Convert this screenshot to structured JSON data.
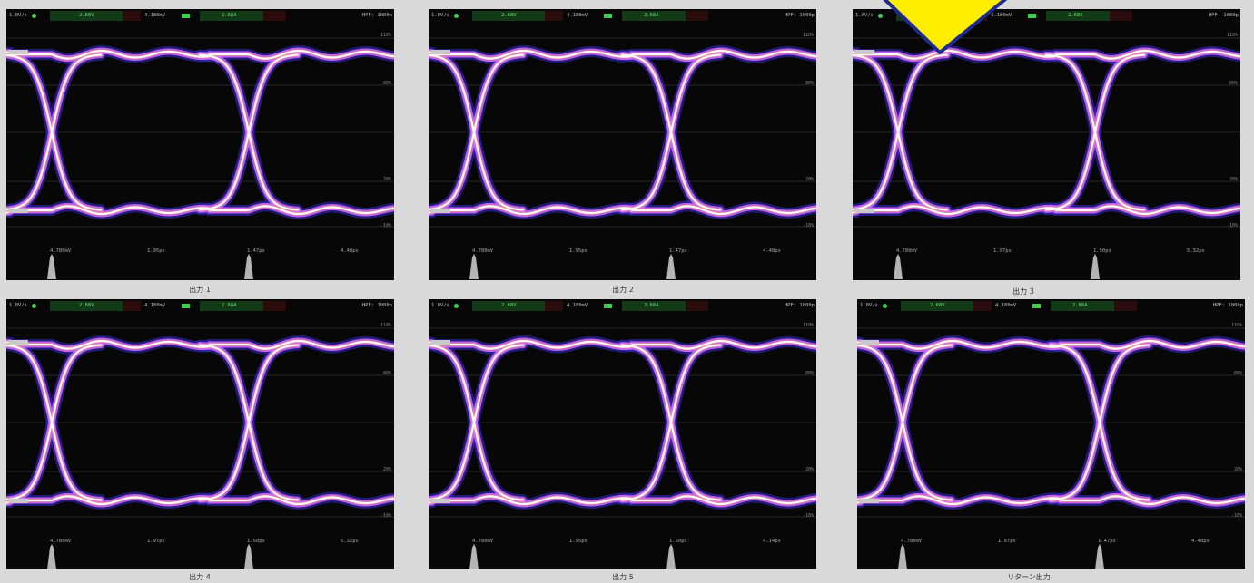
{
  "panels": [
    {
      "caption": "出力 1",
      "status": {
        "left": "1.0V/s",
        "mid1": "2.68V",
        "mid2": "4.180mV",
        "mid3": "2.68A",
        "right": "HPF: 1000p"
      },
      "levels": [
        "110%",
        "80%",
        "20%",
        "-10%"
      ],
      "measurements": [
        "4.780mV",
        "1.95ps",
        "1.47ps",
        "4.48ps"
      ]
    },
    {
      "caption": "出力 2",
      "status": {
        "left": "1.0V/s",
        "mid1": "2.68V",
        "mid2": "4.180mV",
        "mid3": "2.68A",
        "right": "HPF: 1000p"
      },
      "levels": [
        "110%",
        "80%",
        "20%",
        "-10%"
      ],
      "measurements": [
        "4.780mV",
        "1.95ps",
        "1.47ps",
        "4.48ps"
      ]
    },
    {
      "caption": "出力 3",
      "status": {
        "left": "1.0V/s",
        "mid1": "2.68V",
        "mid2": "4.180mV",
        "mid3": "2.68A",
        "right": "HPF: 1000p"
      },
      "levels": [
        "110%",
        "80%",
        "20%",
        "-10%"
      ],
      "measurements": [
        "4.780mV",
        "1.97ps",
        "1.50ps",
        "5.32ps"
      ]
    },
    {
      "caption": "出力 4",
      "status": {
        "left": "1.0V/s",
        "mid1": "2.68V",
        "mid2": "4.180mV",
        "mid3": "2.68A",
        "right": "HPF: 1000p"
      },
      "levels": [
        "110%",
        "80%",
        "20%",
        "-10%"
      ],
      "measurements": [
        "4.780mV",
        "1.97ps",
        "1.50ps",
        "5.32ps"
      ]
    },
    {
      "caption": "出力 5",
      "status": {
        "left": "1.0V/s",
        "mid1": "2.68V",
        "mid2": "4.180mV",
        "mid3": "2.68A",
        "right": "HPF: 1000p"
      },
      "levels": [
        "110%",
        "80%",
        "20%",
        "-10%"
      ],
      "measurements": [
        "4.780mV",
        "1.95ps",
        "1.50ps",
        "4.14ps"
      ]
    },
    {
      "caption": "リターン出力",
      "status": {
        "left": "1.0V/s",
        "mid1": "2.68V",
        "mid2": "4.180mV",
        "mid3": "2.68A",
        "right": "HPF: 1000p"
      },
      "levels": [
        "110%",
        "80%",
        "20%",
        "-10%"
      ],
      "measurements": [
        "4.780mV",
        "1.97ps",
        "1.47ps",
        "4.48ps"
      ]
    }
  ],
  "colors": {
    "screen": "#070707",
    "trace_core": "#ffffff",
    "trace_mid": "#d76fff",
    "trace_outer": "#3a2bd6",
    "trace_hot": "#ff9a2e",
    "arrow_fill": "#ffee00",
    "arrow_stroke": "#1d2a8f"
  }
}
